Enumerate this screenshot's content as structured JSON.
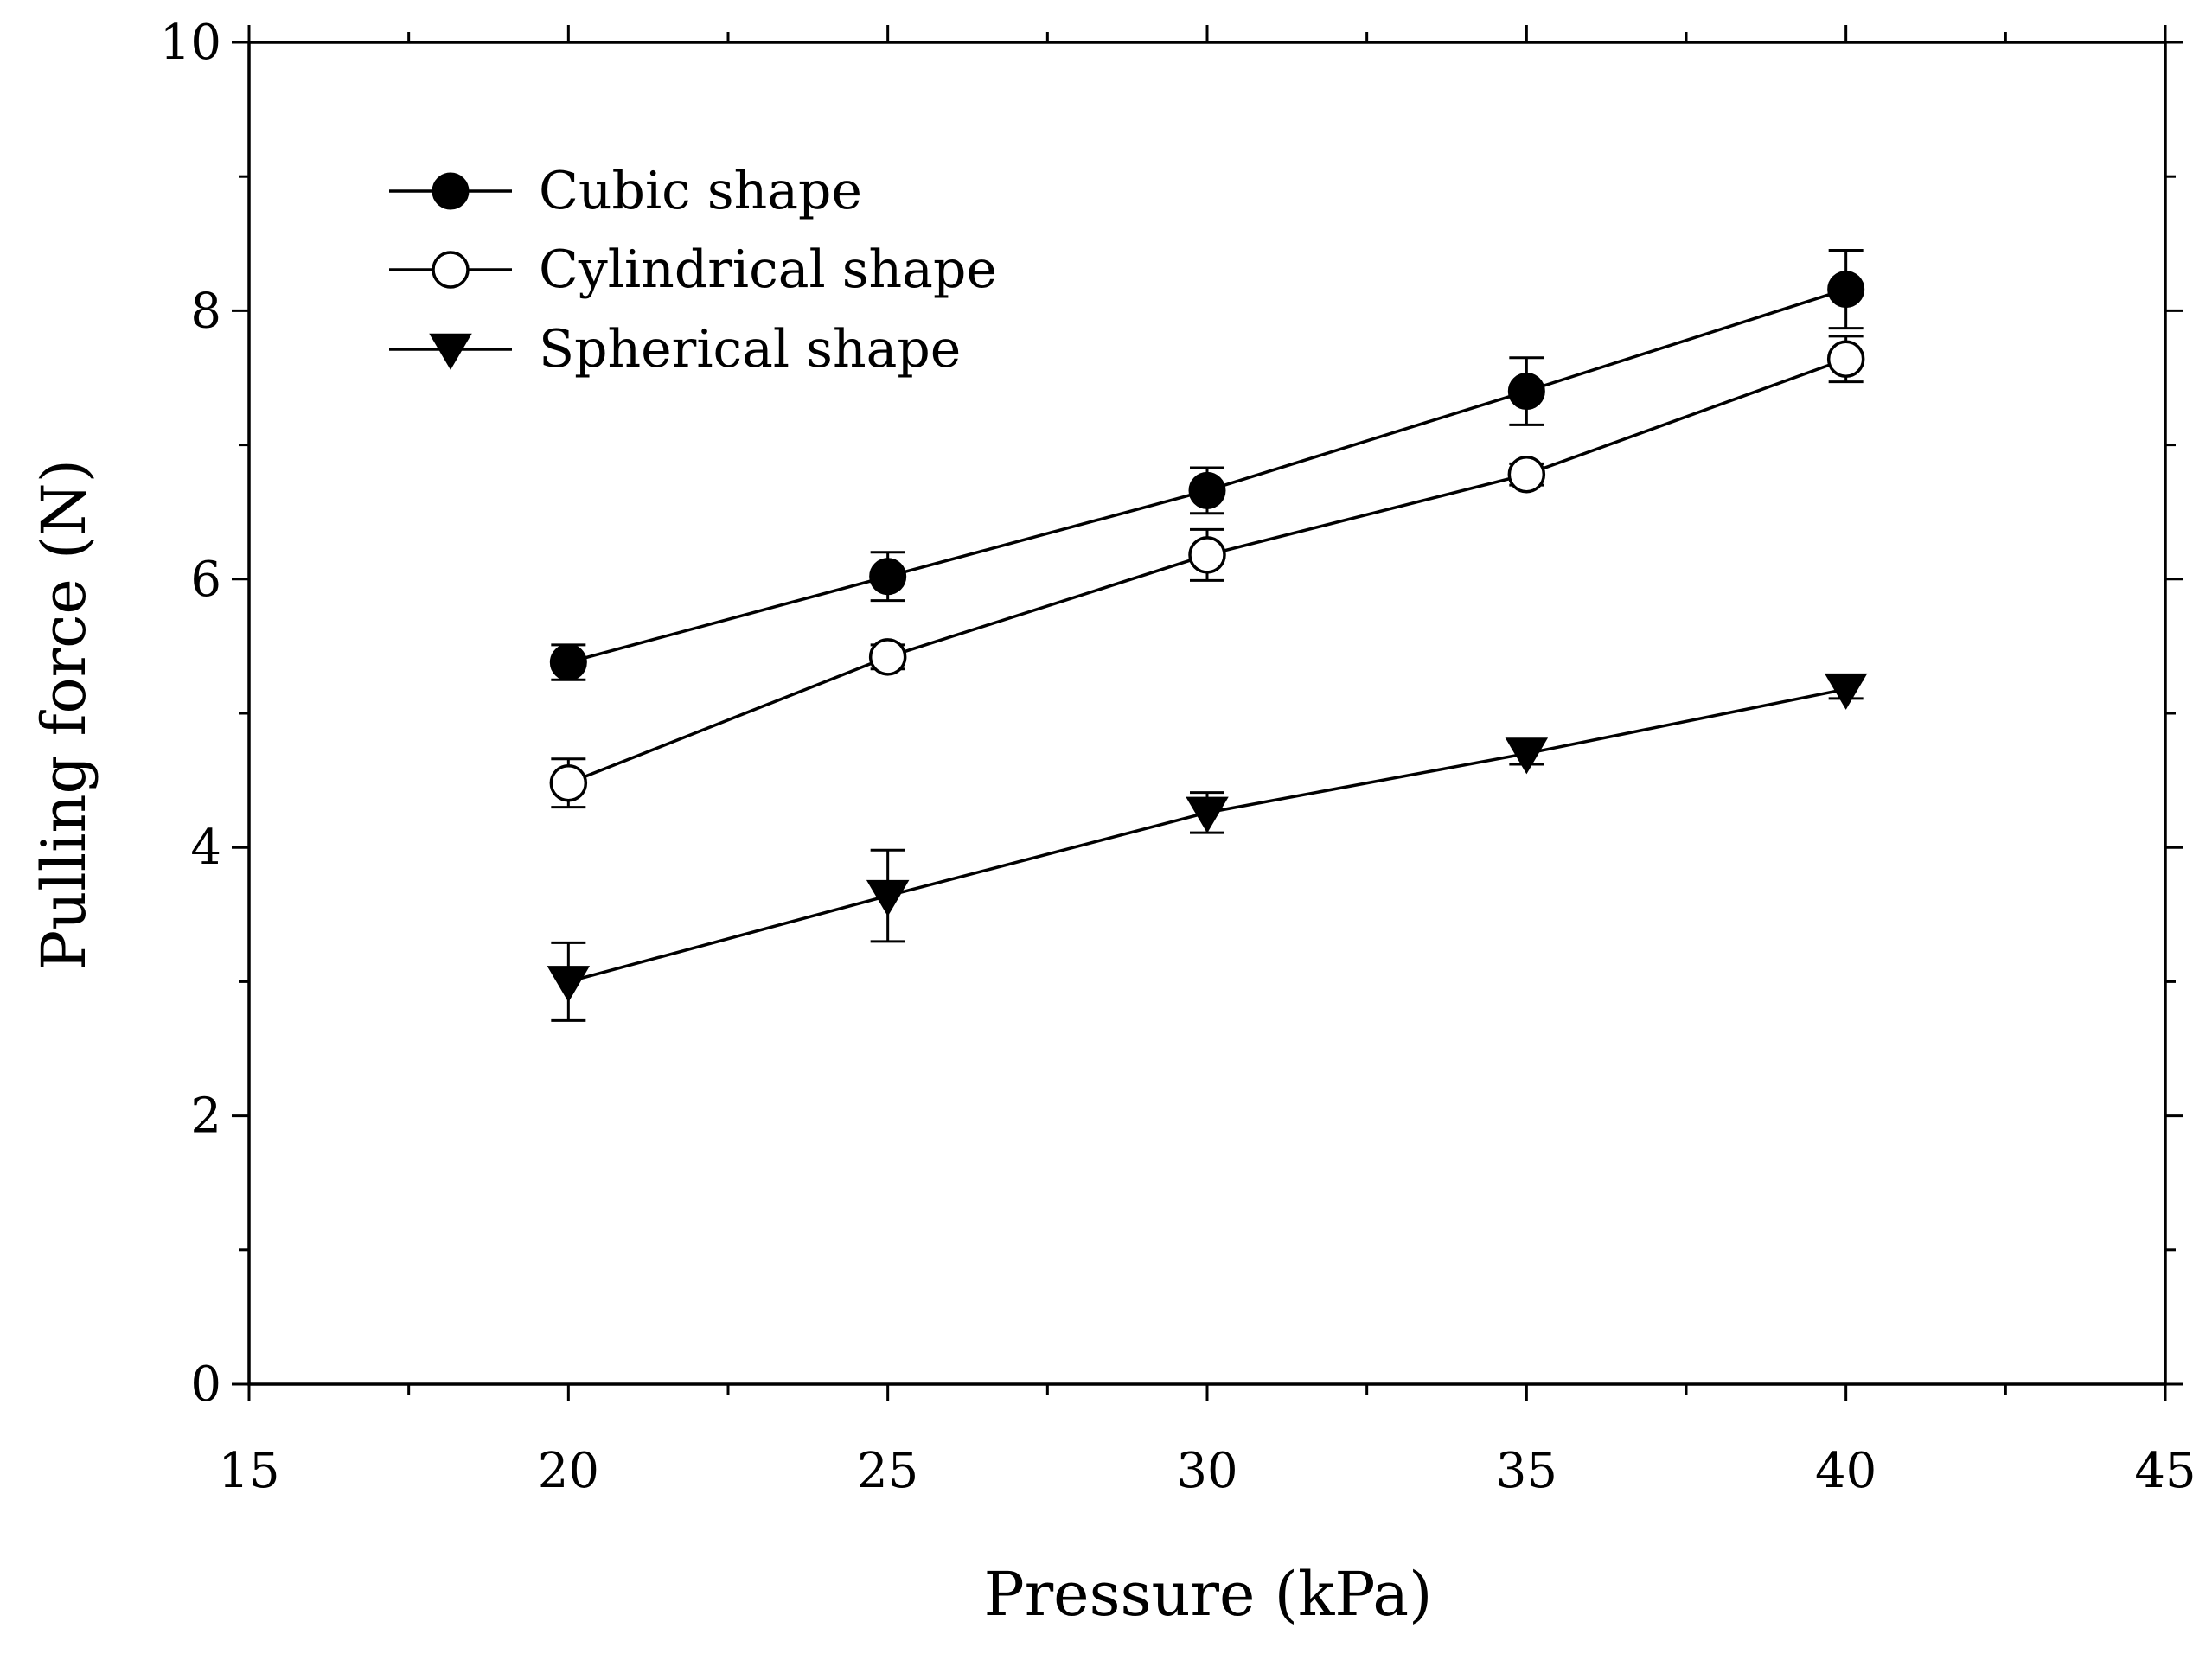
{
  "chart_data": {
    "type": "line",
    "title": "",
    "xlabel": "Pressure (kPa)",
    "ylabel": "Pulling force (N)",
    "xlim": [
      15,
      45
    ],
    "ylim": [
      0,
      10
    ],
    "x_ticks": [
      15,
      20,
      25,
      30,
      35,
      40,
      45
    ],
    "x_tick_labels": [
      "15",
      "20",
      "25",
      "30",
      "35",
      "40",
      "45"
    ],
    "y_ticks": [
      0,
      2,
      4,
      6,
      8,
      10
    ],
    "y_tick_labels": [
      "0",
      "2",
      "4",
      "6",
      "8",
      "10"
    ],
    "x_minor_ticks": [
      17.5,
      22.5,
      27.5,
      32.5,
      37.5,
      42.5
    ],
    "y_minor_ticks": [
      1,
      3,
      5,
      7,
      9
    ],
    "grid": false,
    "legend_position": "top-left",
    "x": [
      20,
      25,
      30,
      35,
      40
    ],
    "series": [
      {
        "name": "Cubic shape",
        "marker": "filled-circle",
        "values": [
          5.38,
          6.02,
          6.66,
          7.4,
          8.16
        ],
        "errors": [
          0.13,
          0.18,
          0.17,
          0.25,
          0.29
        ]
      },
      {
        "name": "Cylindrical shape",
        "marker": "open-circle",
        "values": [
          4.48,
          5.42,
          6.18,
          6.78,
          7.64
        ],
        "errors": [
          0.18,
          0.09,
          0.19,
          0.08,
          0.17
        ]
      },
      {
        "name": "Spherical shape",
        "marker": "filled-triangle-down",
        "values": [
          3.0,
          3.64,
          4.26,
          4.7,
          5.18
        ],
        "errors": [
          0.29,
          0.34,
          0.15,
          0.08,
          0.07
        ]
      }
    ]
  },
  "colors": {
    "ink": "#000000",
    "background": "#ffffff"
  }
}
